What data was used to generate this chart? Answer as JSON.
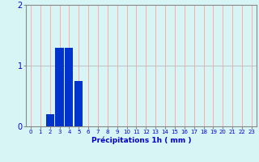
{
  "hours": [
    0,
    1,
    2,
    3,
    4,
    5,
    6,
    7,
    8,
    9,
    10,
    11,
    12,
    13,
    14,
    15,
    16,
    17,
    18,
    19,
    20,
    21,
    22,
    23
  ],
  "values": [
    0,
    0,
    0.2,
    1.3,
    1.3,
    0.75,
    0,
    0,
    0,
    0,
    0,
    0,
    0,
    0,
    0,
    0,
    0,
    0,
    0,
    0,
    0,
    0,
    0,
    0
  ],
  "bar_color": "#0033cc",
  "bg_color": "#d8f5f5",
  "grid_color_h": "#c0c0c0",
  "grid_color_v": "#ffaaaa",
  "xlabel": "Précipitations 1h ( mm )",
  "xlabel_color": "#0000cc",
  "tick_color": "#0000cc",
  "ylim": [
    0,
    2
  ],
  "yticks": [
    0,
    1,
    2
  ],
  "xlim": [
    -0.5,
    23.5
  ],
  "bar_width": 0.85
}
